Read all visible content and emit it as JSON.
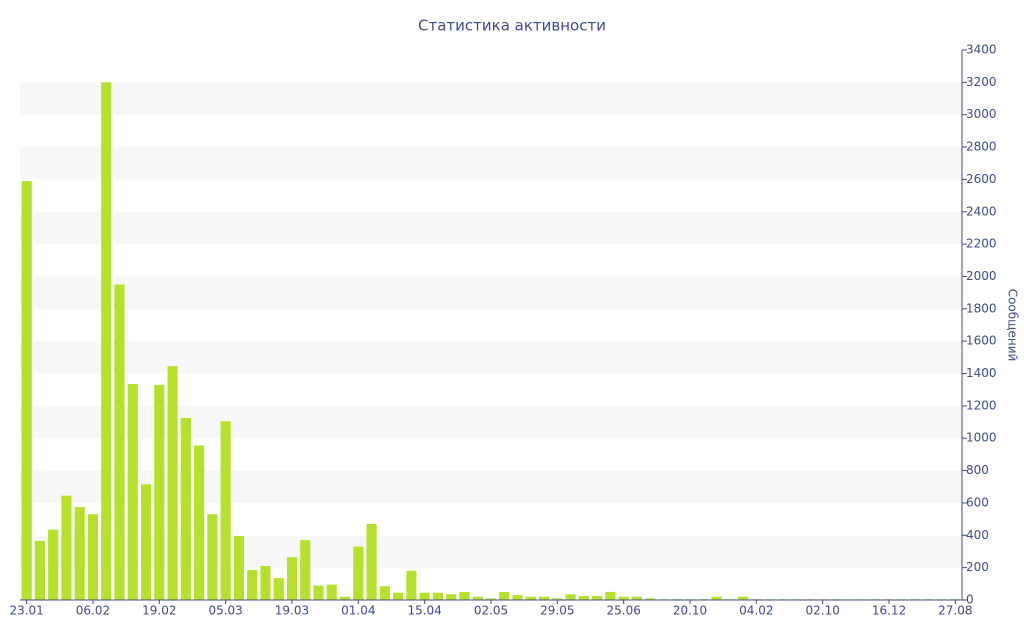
{
  "chart_data": {
    "type": "bar",
    "title": "Статистика активности",
    "y_label": "Сообщений",
    "categories": [
      "23.01",
      null,
      null,
      null,
      null,
      "06.02",
      null,
      null,
      null,
      null,
      "19.02",
      null,
      null,
      null,
      null,
      "05.03",
      null,
      null,
      null,
      null,
      "19.03",
      null,
      null,
      null,
      null,
      "01.04",
      null,
      null,
      null,
      null,
      "15.04",
      null,
      null,
      null,
      null,
      "02.05",
      null,
      null,
      null,
      null,
      "29.05",
      null,
      null,
      null,
      null,
      "25.06",
      null,
      null,
      null,
      null,
      "20.10",
      null,
      null,
      null,
      null,
      "04.02",
      null,
      null,
      null,
      null,
      "02.10",
      null,
      null,
      null,
      null,
      "16.12",
      null,
      null,
      null,
      null,
      "27.08"
    ],
    "values": [
      2590,
      365,
      435,
      645,
      575,
      530,
      3200,
      1950,
      1335,
      715,
      1330,
      1445,
      1125,
      955,
      530,
      1105,
      395,
      185,
      210,
      135,
      265,
      370,
      90,
      95,
      20,
      330,
      470,
      85,
      45,
      180,
      45,
      45,
      35,
      50,
      20,
      10,
      50,
      30,
      20,
      20,
      10,
      35,
      25,
      25,
      50,
      20,
      20,
      10,
      5,
      5,
      5,
      5,
      20,
      5,
      20,
      5,
      5,
      5,
      5,
      5,
      5,
      5,
      5,
      5,
      5,
      5,
      5,
      5,
      5,
      5,
      5
    ],
    "color": "#b5e02b",
    "ylim": [
      0,
      3400
    ],
    "yticks": [
      0,
      200,
      400,
      600,
      800,
      1000,
      1200,
      1400,
      1600,
      1800,
      2000,
      2200,
      2400,
      2600,
      2800,
      3000,
      3200,
      3400
    ],
    "grid": "bands",
    "y_axis_side": "right"
  }
}
